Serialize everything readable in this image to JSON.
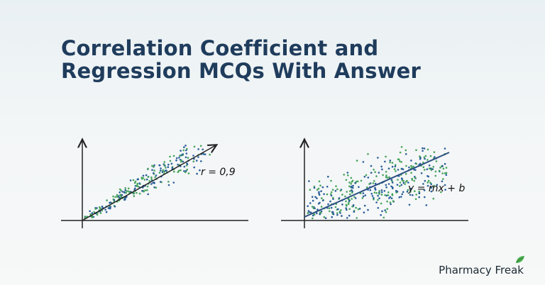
{
  "title": {
    "line1": "Correlation Coefficient and",
    "line2": "Regression MCQs With Answer"
  },
  "left_plot": {
    "annotation": "r = 0,9"
  },
  "right_plot": {
    "annotation": "y = mx + b"
  },
  "brand": {
    "name": "Pharmacy Freak",
    "icon": "leaf-icon",
    "accent": "#4caf50"
  },
  "colors": {
    "title": "#1f3c5c",
    "dot_blue": "#2a5d9a",
    "dot_green": "#45a35a",
    "line": "#2b4f82",
    "axis": "#222222"
  }
}
